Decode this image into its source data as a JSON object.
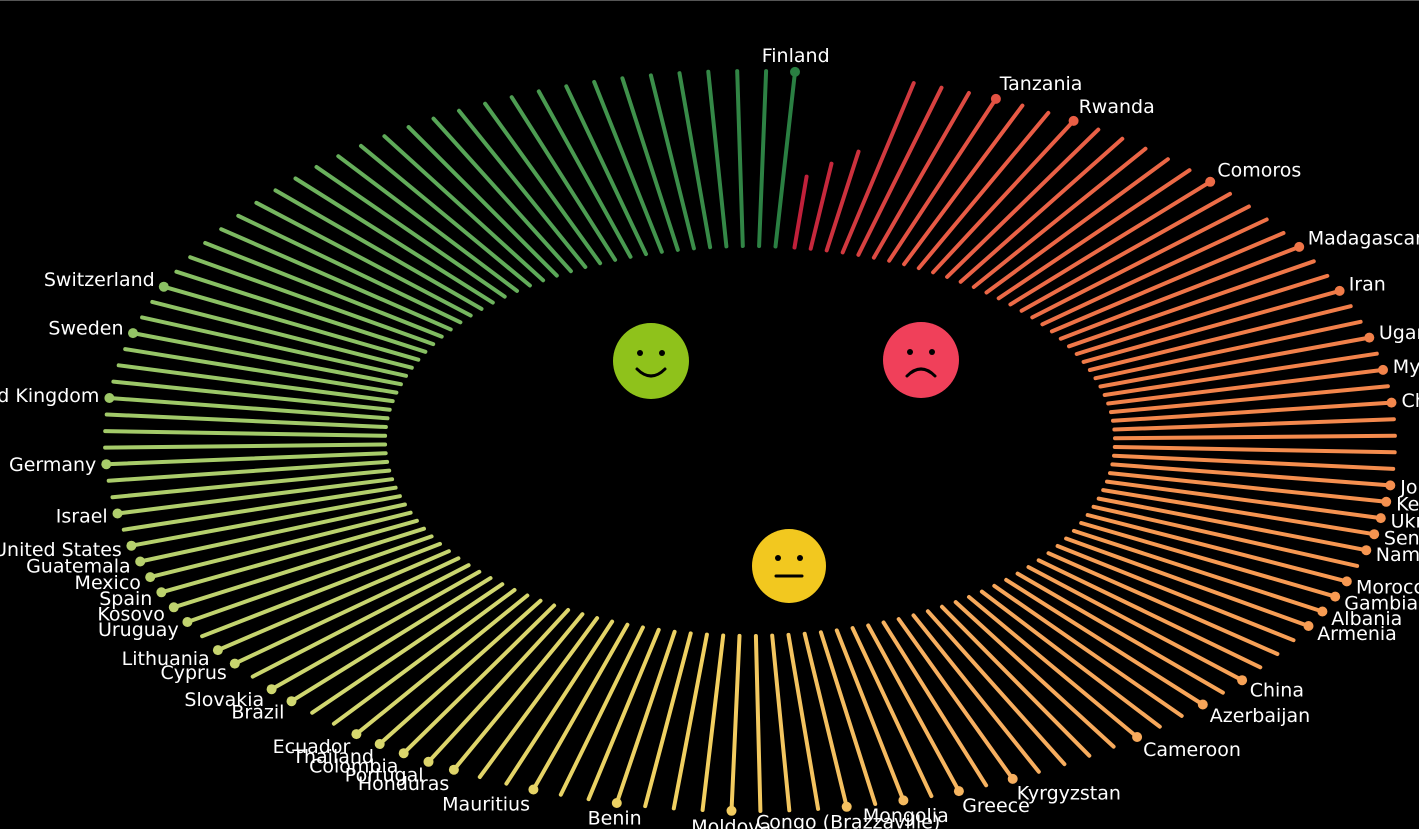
{
  "chart_data": {
    "type": "radial-lollipop",
    "title": "",
    "total_spokes": 140,
    "start_angle_deg": -83,
    "end_angle_deg": 274,
    "color_stops": [
      {
        "at": 0.0,
        "color": "#c0203a"
      },
      {
        "at": 0.05,
        "color": "#e85a45"
      },
      {
        "at": 0.16,
        "color": "#f07a48"
      },
      {
        "at": 0.3,
        "color": "#f79a52"
      },
      {
        "at": 0.42,
        "color": "#f7b060"
      },
      {
        "at": 0.5,
        "color": "#f2d060"
      },
      {
        "at": 0.6,
        "color": "#d3d870"
      },
      {
        "at": 0.7,
        "color": "#b2cf6c"
      },
      {
        "at": 0.8,
        "color": "#8ec265"
      },
      {
        "at": 0.9,
        "color": "#5aa858"
      },
      {
        "at": 1.0,
        "color": "#2a7f42"
      }
    ],
    "labeled_countries": [
      {
        "name": "Tanzania",
        "index": 6
      },
      {
        "name": "Rwanda",
        "index": 9
      },
      {
        "name": "Comoros",
        "index": 15
      },
      {
        "name": "Madagascar",
        "index": 20
      },
      {
        "name": "Iran",
        "index": 23
      },
      {
        "name": "Uganda",
        "index": 26
      },
      {
        "name": "Myanmar",
        "index": 28
      },
      {
        "name": "Chad",
        "index": 30
      },
      {
        "name": "Jordan",
        "index": 35
      },
      {
        "name": "Kenya",
        "index": 36
      },
      {
        "name": "Ukraine",
        "index": 37
      },
      {
        "name": "Senegal",
        "index": 38
      },
      {
        "name": "Namibia",
        "index": 39
      },
      {
        "name": "Morocco",
        "index": 41
      },
      {
        "name": "Gambia",
        "index": 42
      },
      {
        "name": "Albania",
        "index": 43
      },
      {
        "name": "Armenia",
        "index": 44
      },
      {
        "name": "China",
        "index": 48
      },
      {
        "name": "Azerbaijan",
        "index": 50
      },
      {
        "name": "Cameroon",
        "index": 53
      },
      {
        "name": "Kyrgyzstan",
        "index": 58
      },
      {
        "name": "Greece",
        "index": 60
      },
      {
        "name": "Mongolia",
        "index": 62
      },
      {
        "name": "Congo (Brazzaville)",
        "index": 64
      },
      {
        "name": "Moldova",
        "index": 68
      },
      {
        "name": "Benin",
        "index": 72
      },
      {
        "name": "Mauritius",
        "index": 75
      },
      {
        "name": "Honduras",
        "index": 78
      },
      {
        "name": "Portugal",
        "index": 79
      },
      {
        "name": "Colombia",
        "index": 80
      },
      {
        "name": "Thailand",
        "index": 81
      },
      {
        "name": "Ecuador",
        "index": 82
      },
      {
        "name": "Brazil",
        "index": 85
      },
      {
        "name": "Slovakia",
        "index": 86
      },
      {
        "name": "Cyprus",
        "index": 88
      },
      {
        "name": "Lithuania",
        "index": 89
      },
      {
        "name": "Uruguay",
        "index": 91
      },
      {
        "name": "Kosovo",
        "index": 92
      },
      {
        "name": "Spain",
        "index": 93
      },
      {
        "name": "Mexico",
        "index": 94
      },
      {
        "name": "Guatemala",
        "index": 95
      },
      {
        "name": "United States",
        "index": 96
      },
      {
        "name": "Israel",
        "index": 98
      },
      {
        "name": "Germany",
        "index": 101
      },
      {
        "name": "United Kingdom",
        "index": 105
      },
      {
        "name": "Sweden",
        "index": 109
      },
      {
        "name": "Switzerland",
        "index": 112
      },
      {
        "name": "Finland",
        "index": 139
      }
    ]
  },
  "icons": [
    {
      "name": "happy-face-icon",
      "color": "#8fc21b"
    },
    {
      "name": "sad-face-icon",
      "color": "#f0405a"
    },
    {
      "name": "neutral-face-icon",
      "color": "#f2c81f"
    }
  ]
}
